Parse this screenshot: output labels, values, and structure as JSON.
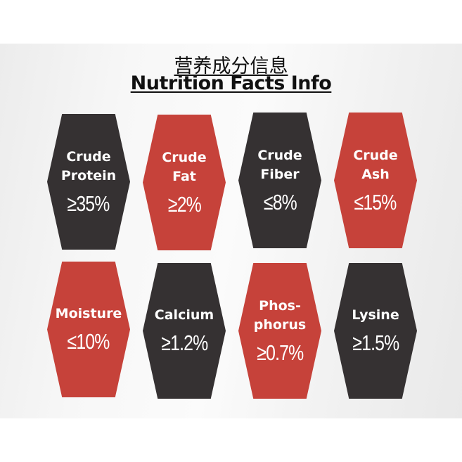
{
  "title_cn": "营养成分信息",
  "title_en": "Nutrition Facts Info",
  "colors": {
    "dark": "#353132",
    "red": "#c6423a"
  },
  "items": [
    {
      "label": "Crude\nProtein",
      "value": "≥35%",
      "color": "dark"
    },
    {
      "label": "Crude\nFat",
      "value": "≥2%",
      "color": "red"
    },
    {
      "label": "Crude\nFiber",
      "value": "≤8%",
      "color": "dark"
    },
    {
      "label": "Crude\nAsh",
      "value": "≤15%",
      "color": "red"
    },
    {
      "label": "Moisture",
      "value": "≤10%",
      "color": "red"
    },
    {
      "label": "Calcium",
      "value": "≥1.2%",
      "color": "dark"
    },
    {
      "label": "Phos-\nphorus",
      "value": "≥0.7%",
      "color": "red"
    },
    {
      "label": "Lysine",
      "value": "≥1.5%",
      "color": "dark"
    }
  ]
}
